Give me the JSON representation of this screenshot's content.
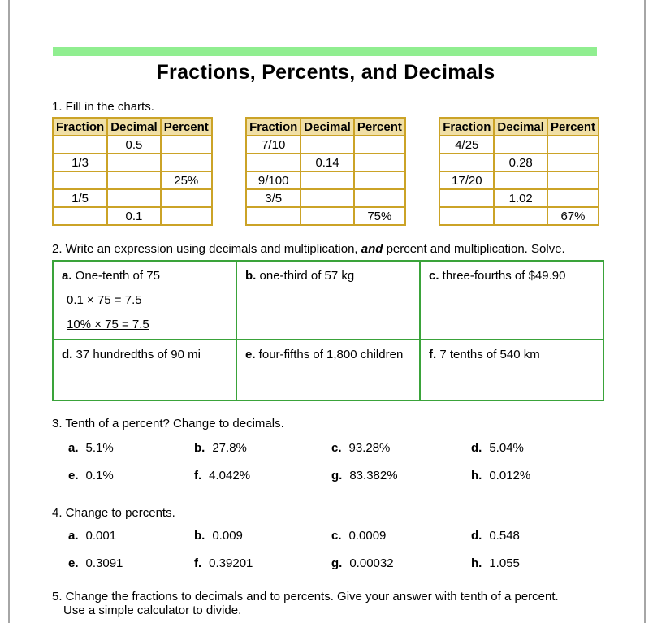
{
  "page": {
    "title": "Fractions, Percents, and Decimals",
    "accent_color": "#90EE90",
    "chart_border_color": "#CBA327",
    "chart_header_bg": "#F0DFA6",
    "q2_border_color": "#3AA33A"
  },
  "questions": {
    "q1": {
      "label": "1. Fill in the charts."
    },
    "q2": {
      "label_prefix": "2. Write an expression using decimals and multiplication, ",
      "label_emphasis": "and",
      "label_suffix": " percent and multiplication. Solve.",
      "cells": [
        {
          "letter": "a.",
          "text": "One-tenth of 75",
          "solutions": [
            "0.1 × 75 = 7.5",
            "10% × 75 = 7.5"
          ]
        },
        {
          "letter": "b.",
          "text": "one-third of 57 kg",
          "solutions": []
        },
        {
          "letter": "c.",
          "text": "three-fourths of $49.90",
          "solutions": []
        },
        {
          "letter": "d.",
          "text": "37 hundredths of 90 mi",
          "solutions": []
        },
        {
          "letter": "e.",
          "text": "four-fifths of 1,800 children",
          "solutions": []
        },
        {
          "letter": "f.",
          "text": "7 tenths of 540 km",
          "solutions": []
        }
      ]
    },
    "q3": {
      "label": "3. Tenth of a percent? Change to decimals.",
      "items": [
        {
          "letter": "a.",
          "value": "5.1%"
        },
        {
          "letter": "b.",
          "value": "27.8%"
        },
        {
          "letter": "c.",
          "value": "93.28%"
        },
        {
          "letter": "d.",
          "value": "5.04%"
        },
        {
          "letter": "e.",
          "value": "0.1%"
        },
        {
          "letter": "f.",
          "value": "4.042%"
        },
        {
          "letter": "g.",
          "value": "83.382%"
        },
        {
          "letter": "h.",
          "value": "0.012%"
        }
      ]
    },
    "q4": {
      "label": "4. Change to percents.",
      "items": [
        {
          "letter": "a.",
          "value": "0.001"
        },
        {
          "letter": "b.",
          "value": "0.009"
        },
        {
          "letter": "c.",
          "value": "0.0009"
        },
        {
          "letter": "d.",
          "value": "0.548"
        },
        {
          "letter": "e.",
          "value": "0.3091"
        },
        {
          "letter": "f.",
          "value": "0.39201"
        },
        {
          "letter": "g.",
          "value": "0.00032"
        },
        {
          "letter": "h.",
          "value": "1.055"
        }
      ]
    },
    "q5": {
      "label_line1": "5. Change the fractions to decimals and to percents. Give your answer with tenth of a percent.",
      "label_line2": "Use a simple calculator to divide."
    }
  },
  "charts": {
    "headers": [
      "Fraction",
      "Decimal",
      "Percent"
    ],
    "tables": [
      {
        "rows": [
          [
            "",
            "0.5",
            ""
          ],
          [
            "1/3",
            "",
            ""
          ],
          [
            "",
            "",
            "25%"
          ],
          [
            "1/5",
            "",
            ""
          ],
          [
            "",
            "0.1",
            ""
          ]
        ]
      },
      {
        "rows": [
          [
            "7/10",
            "",
            ""
          ],
          [
            "",
            "0.14",
            ""
          ],
          [
            "9/100",
            "",
            ""
          ],
          [
            "3/5",
            "",
            ""
          ],
          [
            "",
            "",
            "75%"
          ]
        ]
      },
      {
        "rows": [
          [
            "4/25",
            "",
            ""
          ],
          [
            "",
            "0.28",
            ""
          ],
          [
            "17/20",
            "",
            ""
          ],
          [
            "",
            "1.02",
            ""
          ],
          [
            "",
            "",
            "67%"
          ]
        ]
      }
    ]
  }
}
